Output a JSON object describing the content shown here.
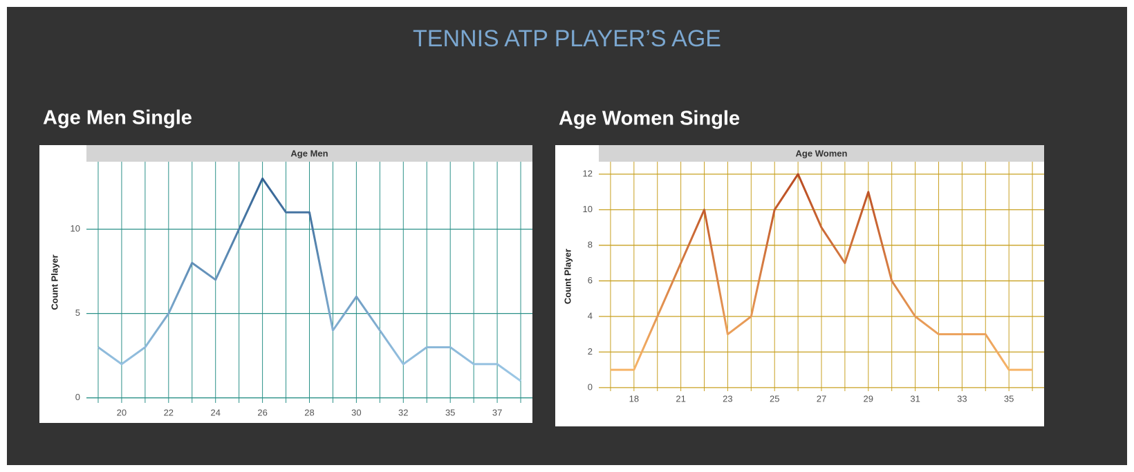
{
  "title": "TENNIS ATP PLAYER’S AGE",
  "chart_data": [
    {
      "type": "line",
      "title": "Age Men Single",
      "panel_label": "Age Men",
      "y_label": "Count Player",
      "categories": [
        null,
        20,
        null,
        22,
        null,
        24,
        null,
        26,
        null,
        28,
        null,
        30,
        null,
        32,
        null,
        35,
        null,
        37,
        null
      ],
      "series": [
        {
          "colors": [
            "#a9d4f0",
            "#2a5a8c"
          ],
          "values": [
            3,
            2,
            3,
            5,
            8,
            7,
            10,
            13,
            11,
            11,
            4,
            6,
            4,
            2,
            3,
            3,
            2,
            2,
            1
          ]
        }
      ],
      "ylim": [
        -0.3,
        14
      ],
      "yticks": [
        0,
        5,
        10
      ],
      "grid": true,
      "grid_color": "#2a9088"
    },
    {
      "type": "line",
      "title": "Age Women Single",
      "panel_label": "Age Women",
      "y_label": "Count Player",
      "categories": [
        null,
        18,
        null,
        21,
        null,
        23,
        null,
        25,
        null,
        27,
        null,
        29,
        null,
        31,
        null,
        33,
        null,
        35,
        null
      ],
      "series": [
        {
          "colors": [
            "#fdc070",
            "#b5431c"
          ],
          "values": [
            1,
            1,
            4,
            7,
            10,
            3,
            4,
            10,
            12,
            9,
            7,
            11,
            6,
            4,
            3,
            3,
            3,
            1,
            1
          ]
        }
      ],
      "ylim": [
        -0.2,
        12.7
      ],
      "yticks": [
        0,
        2,
        4,
        6,
        8,
        10,
        12
      ],
      "grid": true,
      "grid_color": "#c8a020"
    }
  ]
}
